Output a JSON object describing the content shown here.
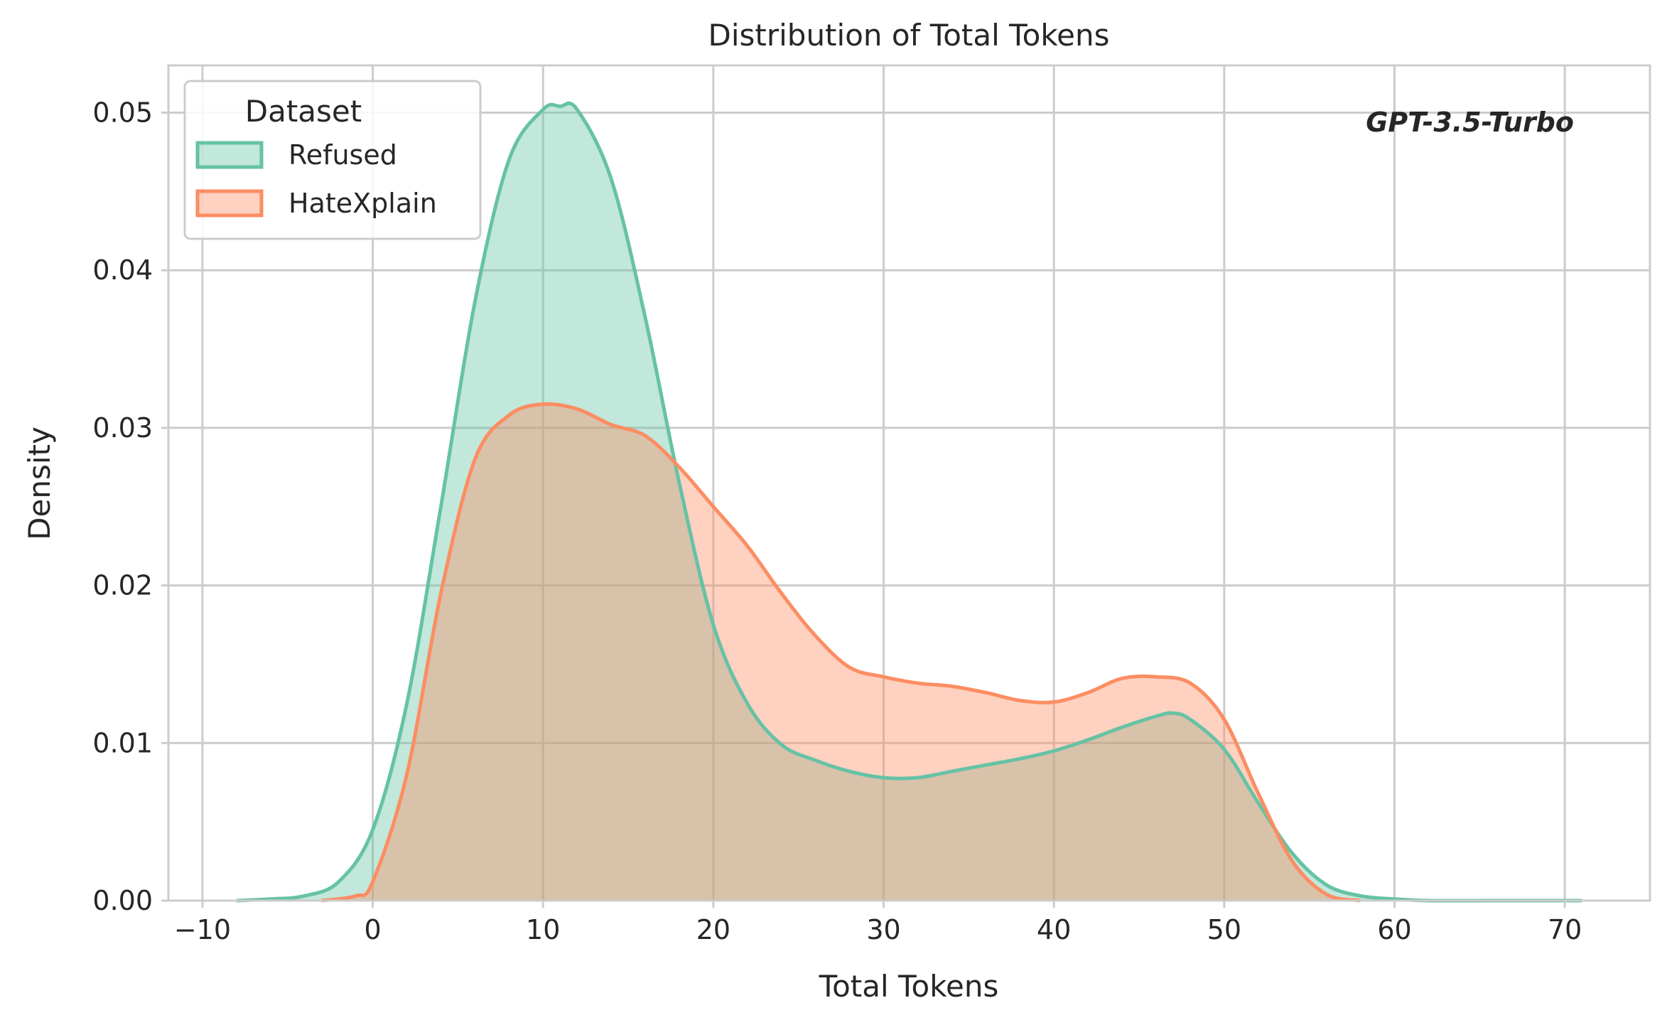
{
  "chart_data": {
    "type": "area",
    "title": "Distribution of Total Tokens",
    "xlabel": "Total Tokens",
    "ylabel": "Density",
    "xlim": [
      -12,
      75
    ],
    "ylim": [
      0,
      0.053
    ],
    "xticks": [
      -10,
      0,
      10,
      20,
      30,
      40,
      50,
      60,
      70
    ],
    "xtick_labels": [
      "−10",
      "0",
      "10",
      "20",
      "30",
      "40",
      "50",
      "60",
      "70"
    ],
    "yticks": [
      0,
      0.01,
      0.02,
      0.03,
      0.04,
      0.05
    ],
    "ytick_labels": [
      "0.00",
      "0.01",
      "0.02",
      "0.03",
      "0.04",
      "0.05"
    ],
    "grid": true,
    "legend": {
      "title": "Dataset",
      "position": "top-left"
    },
    "annotation": "GPT-3.5-Turbo",
    "series": [
      {
        "name": "Refused",
        "color": "#66c2a5",
        "x": [
          -8,
          -6,
          -4,
          -2,
          0,
          2,
          4,
          6,
          8,
          10,
          11,
          12,
          14,
          16,
          18,
          20,
          22,
          24,
          26,
          28,
          30,
          32,
          34,
          36,
          38,
          40,
          42,
          44,
          46,
          47,
          48,
          50,
          52,
          54,
          56,
          58,
          60,
          62,
          66,
          71
        ],
        "y": [
          0.0,
          0.0001,
          0.0003,
          0.0012,
          0.0045,
          0.0125,
          0.025,
          0.038,
          0.047,
          0.0502,
          0.0504,
          0.0502,
          0.0458,
          0.037,
          0.0265,
          0.0175,
          0.0125,
          0.0099,
          0.0089,
          0.0082,
          0.0078,
          0.0078,
          0.0082,
          0.0086,
          0.009,
          0.0095,
          0.0102,
          0.011,
          0.0117,
          0.0119,
          0.0115,
          0.0096,
          0.0062,
          0.003,
          0.001,
          0.0003,
          0.0001,
          0.0,
          0.0,
          0.0
        ],
        "fill_opacity": 0.4
      },
      {
        "name": "HateXplain",
        "color": "#fc8d62",
        "x": [
          -3,
          -1,
          0,
          2,
          4,
          6,
          8,
          10,
          12,
          14,
          16,
          18,
          20,
          22,
          24,
          26,
          28,
          30,
          32,
          34,
          36,
          38,
          40,
          42,
          44,
          46,
          48,
          50,
          52,
          54,
          56,
          58
        ],
        "y": [
          0.0,
          0.0003,
          0.0012,
          0.008,
          0.0195,
          0.028,
          0.0308,
          0.0315,
          0.0312,
          0.0302,
          0.0295,
          0.0275,
          0.025,
          0.0225,
          0.0195,
          0.0168,
          0.0148,
          0.0142,
          0.0138,
          0.0136,
          0.0132,
          0.0127,
          0.0126,
          0.0132,
          0.0141,
          0.0142,
          0.0138,
          0.0115,
          0.0068,
          0.0025,
          0.0004,
          0.0
        ],
        "fill_opacity": 0.4
      }
    ]
  }
}
